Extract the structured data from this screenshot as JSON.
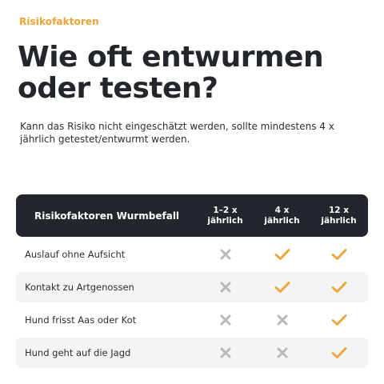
{
  "eyebrow": "Risikofaktoren",
  "title": "Wie oft entwurmen oder testen?",
  "intro": "Kann das Risiko nicht eingeschätzt werden, sollte mindestens 4 x jährlich getestet/entwurmt werden.",
  "table": {
    "headers": [
      "Risikofaktoren Wurmbefall",
      "1–2 x\njährlich",
      "4 x\njährlich",
      "12 x\njährlich"
    ],
    "rows": [
      {
        "label": "Auslauf ohne Aufsicht",
        "cells": [
          "cross",
          "check",
          "check"
        ]
      },
      {
        "label": "Kontakt zu Artgenossen",
        "cells": [
          "cross",
          "check",
          "check"
        ]
      },
      {
        "label": "Hund frisst Aas oder Kot",
        "cells": [
          "cross",
          "cross",
          "check"
        ]
      },
      {
        "label": "Hund geht auf die Jagd",
        "cells": [
          "cross",
          "cross",
          "check"
        ]
      }
    ]
  },
  "colors": {
    "accent": "#f0a232",
    "header_bg": "#23262d",
    "cross": "#b9b9bb",
    "row_shade": "#f4f4f5"
  }
}
